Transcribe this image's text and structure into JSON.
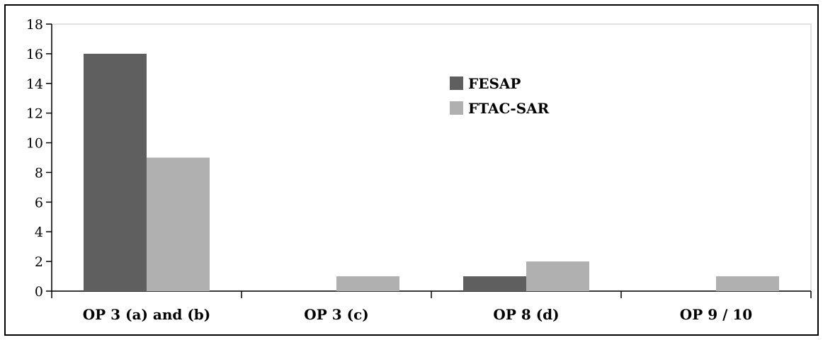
{
  "chart_data": {
    "type": "bar",
    "categories": [
      "OP 3 (a) and (b)",
      "OP 3 (c)",
      "OP 8 (d)",
      "OP 9 / 10"
    ],
    "series": [
      {
        "name": "FESAP",
        "values": [
          16,
          0,
          1,
          0
        ],
        "color": "#5f5f5f"
      },
      {
        "name": "FTAC-SAR",
        "values": [
          9,
          1,
          2,
          1
        ],
        "color": "#b0b0b0"
      }
    ],
    "ylim": [
      0,
      18
    ],
    "yticks": [
      0,
      2,
      4,
      6,
      8,
      10,
      12,
      14,
      16,
      18
    ],
    "title": "",
    "xlabel": "",
    "ylabel": "",
    "grid": false,
    "legend_position": "top-center"
  }
}
